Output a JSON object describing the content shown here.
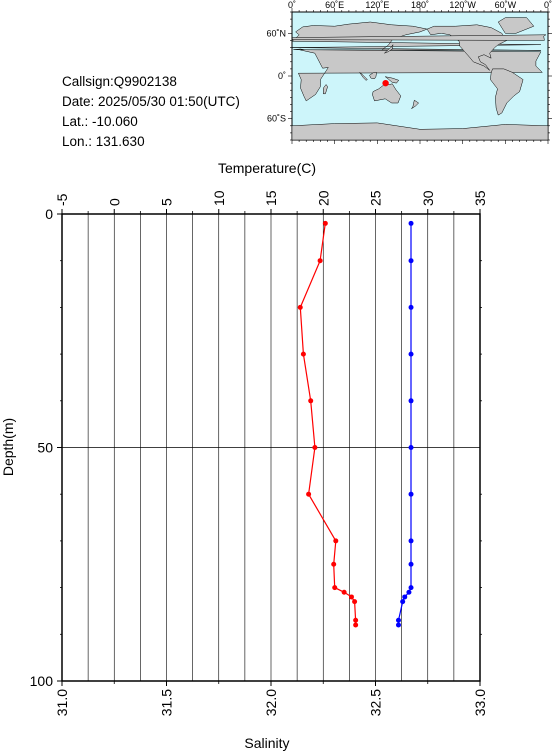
{
  "info": {
    "callsign": "Callsign:Q9902138",
    "date": "Date:  2025/05/30 01:50(UTC)",
    "lat": "Lat.:  -10.060",
    "lon": "Lon.:  131.630"
  },
  "map": {
    "lon_ticks": [
      "0˚",
      "60˚E",
      "120˚E",
      "180˚",
      "120˚W",
      "60˚W",
      "0˚"
    ],
    "lat_ticks": [
      "60˚N",
      "0˚",
      "60˚S"
    ],
    "ocean_color": "#cdf5fa",
    "land_color": "#c8c8c8",
    "marker_color": "#ff0000",
    "station": {
      "lon": 131.63,
      "lat": -10.06
    }
  },
  "chart_data": {
    "type": "line",
    "title": "",
    "top_axis": {
      "label": "Temperature(C)",
      "lim": [
        -5,
        35
      ],
      "ticks": [
        "-5",
        "0",
        "5",
        "10",
        "15",
        "20",
        "25",
        "30",
        "35"
      ]
    },
    "bottom_axis": {
      "label": "Salinity",
      "lim": [
        31.0,
        33.0
      ],
      "ticks": [
        "31.0",
        "31.5",
        "32.0",
        "32.5",
        "33.0"
      ]
    },
    "y_axis": {
      "label": "Depth(m)",
      "lim": [
        0,
        100
      ],
      "inverted": true,
      "ticks": [
        "0",
        "50",
        "100"
      ]
    },
    "grid": true,
    "series": [
      {
        "quantity": "temperature",
        "color": "#ff0000",
        "depth": [
          2,
          10,
          20,
          30,
          40,
          50,
          60,
          70,
          75,
          80,
          81,
          82,
          83,
          87,
          88
        ],
        "values": [
          20.2,
          19.7,
          17.8,
          18.1,
          18.8,
          19.2,
          18.6,
          21.2,
          21.0,
          21.1,
          22.0,
          22.7,
          23.0,
          23.1,
          23.1
        ]
      },
      {
        "quantity": "salinity",
        "color": "#0000ff",
        "depth": [
          2,
          10,
          20,
          30,
          40,
          50,
          60,
          70,
          75,
          80,
          81,
          82,
          83,
          87,
          88
        ],
        "values": [
          32.67,
          32.67,
          32.67,
          32.67,
          32.67,
          32.67,
          32.67,
          32.67,
          32.67,
          32.67,
          32.66,
          32.64,
          32.63,
          32.61,
          32.61
        ]
      }
    ]
  }
}
